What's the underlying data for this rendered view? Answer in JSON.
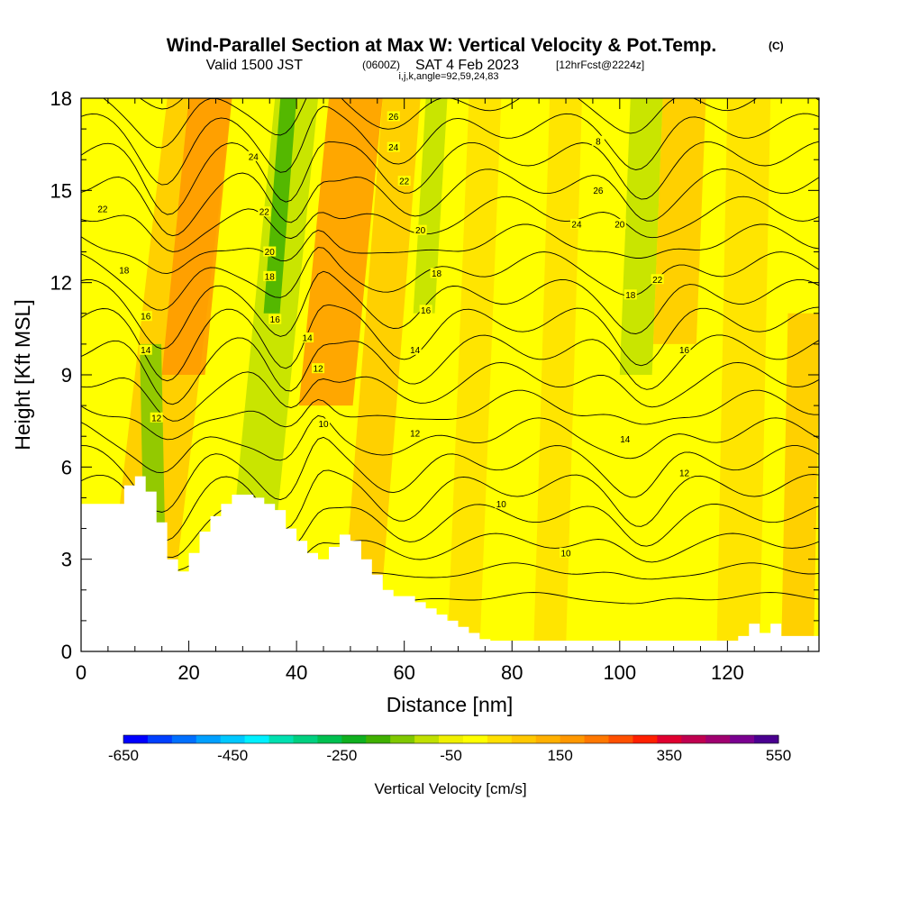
{
  "chart_data": {
    "type": "heatmap",
    "title": "Wind-Parallel Section at Max W: Vertical Velocity & Pot.Temp.",
    "title_mark": "(C)",
    "subtitle_valid": "Valid 1500 JST",
    "subtitle_utc": "(0600Z)",
    "subtitle_date": "SAT 4 Feb 2023",
    "subtitle_fcst": "[12hrFcst@2224z]",
    "subtitle_grid": "i,j,k,angle=92,59,24,83",
    "xlabel": "Distance [nm]",
    "ylabel": "Height [Kft MSL]",
    "xlim": [
      0,
      137
    ],
    "ylim": [
      0,
      18
    ],
    "x_ticks": [
      0,
      20,
      40,
      60,
      80,
      100,
      120
    ],
    "y_ticks": [
      0,
      3,
      6,
      9,
      12,
      15,
      18
    ],
    "colorbar": {
      "label": "Vertical Velocity [cm/s]",
      "tick_labels": [
        "-650",
        "-450",
        "-250",
        "-50",
        "150",
        "350",
        "550"
      ],
      "tick_values": [
        -650,
        -450,
        -250,
        -50,
        150,
        350,
        550
      ],
      "range": [
        -650,
        550
      ],
      "step": 50,
      "colors": [
        "#0000ff",
        "#0040ff",
        "#0070ff",
        "#00a0ff",
        "#00c8ff",
        "#00f0ff",
        "#00e0b0",
        "#00d080",
        "#00c050",
        "#10b020",
        "#40b000",
        "#80c800",
        "#c0e000",
        "#f0f000",
        "#ffff00",
        "#ffe000",
        "#ffc800",
        "#ffb000",
        "#ff9800",
        "#ff7800",
        "#ff5000",
        "#ff2000",
        "#e00030",
        "#c00050",
        "#a00070",
        "#7a0090",
        "#4a0090"
      ]
    },
    "isentropes": {
      "levels": [
        6,
        8,
        10,
        12,
        14,
        16,
        18,
        20,
        22,
        24,
        26
      ],
      "labeled_values": [
        "22",
        "18",
        "16",
        "14",
        "12",
        "24",
        "22",
        "20",
        "18",
        "16",
        "14",
        "12",
        "10",
        "26",
        "24",
        "22",
        "20",
        "18",
        "16",
        "14",
        "12",
        "10",
        "8",
        "26",
        "24",
        "20",
        "22",
        "18",
        "16",
        "14",
        "12",
        "10"
      ]
    },
    "terrain_profile": {
      "x": [
        0,
        4,
        8,
        10,
        12,
        14,
        16,
        18,
        20,
        22,
        24,
        26,
        28,
        30,
        32,
        34,
        36,
        38,
        40,
        42,
        44,
        46,
        48,
        50,
        52,
        54,
        56,
        58,
        60,
        62,
        64,
        66,
        68,
        70,
        72,
        74,
        76,
        80,
        90,
        100,
        110,
        120,
        122,
        124,
        126,
        128,
        130,
        137
      ],
      "height": [
        4.8,
        4.8,
        5.4,
        5.7,
        5.2,
        4.2,
        3.0,
        2.6,
        3.2,
        3.9,
        4.4,
        4.8,
        5.1,
        5.1,
        5.0,
        4.8,
        4.6,
        4.0,
        3.6,
        3.2,
        3.0,
        3.4,
        3.8,
        3.6,
        3.0,
        2.5,
        2.0,
        1.8,
        1.8,
        1.6,
        1.4,
        1.2,
        1.0,
        0.8,
        0.6,
        0.4,
        0.35,
        0.35,
        0.35,
        0.35,
        0.35,
        0.35,
        0.5,
        0.9,
        0.6,
        0.9,
        0.5,
        0.35
      ]
    }
  }
}
